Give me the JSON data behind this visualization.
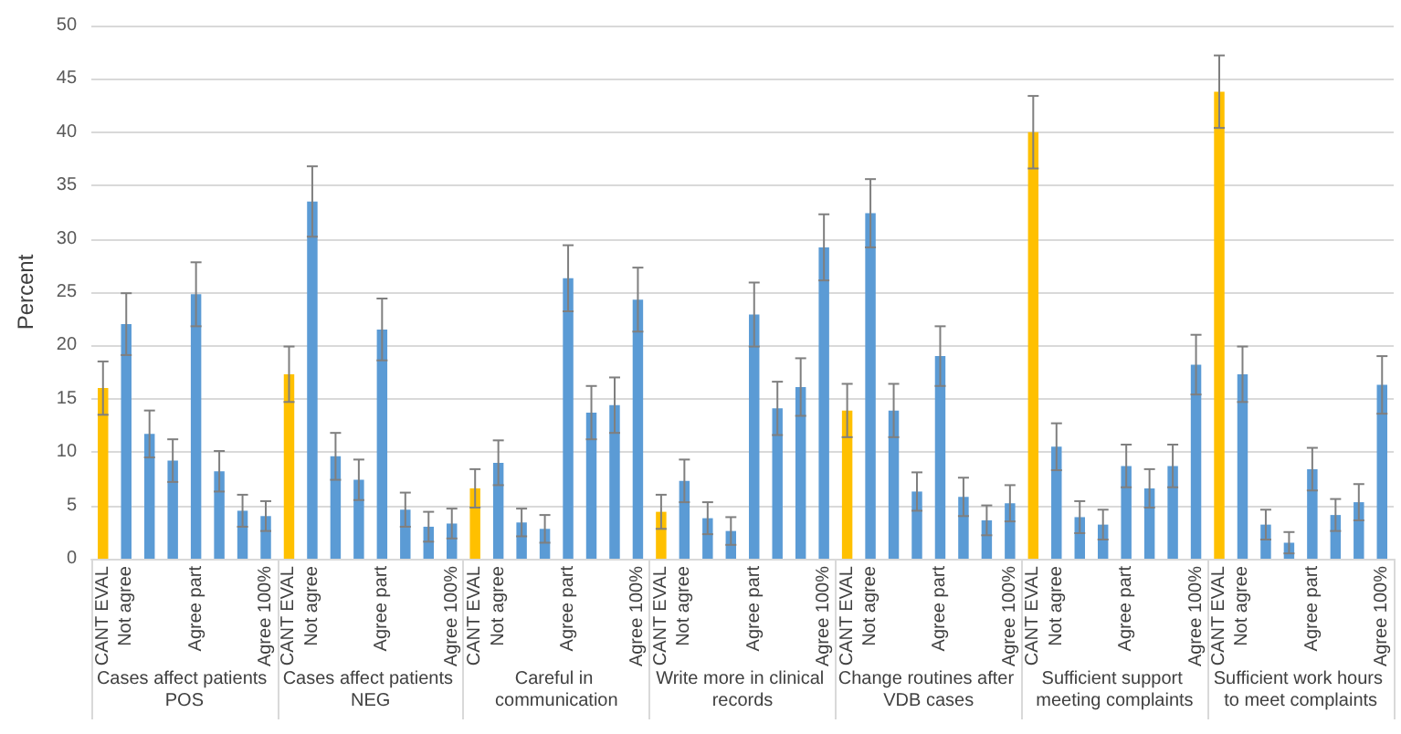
{
  "chart_data": {
    "type": "bar",
    "ylabel": "Percent",
    "categories": [
      "CANT EVAL",
      "Not agree",
      null,
      null,
      "Agree part",
      null,
      null,
      "Agree 100%",
      "CANT EVAL",
      "Not agree",
      null,
      null,
      "Agree part",
      null,
      null,
      "Agree 100%",
      "CANT EVAL",
      "Not agree",
      null,
      null,
      "Agree part",
      null,
      null,
      "Agree 100%",
      "CANT EVAL",
      "Not agree",
      null,
      null,
      "Agree part",
      null,
      null,
      "Agree 100%",
      "CANT EVAL",
      "Not agree",
      null,
      null,
      "Agree part",
      null,
      null,
      "Agree 100%",
      "CANT EVAL",
      "Not agree",
      null,
      null,
      "Agree part",
      null,
      null,
      "Agree 100%",
      "CANT EVAL",
      "Not agree",
      null,
      null,
      "Agree part",
      null,
      null,
      "Agree 100%"
    ],
    "values": [
      16,
      22,
      11.7,
      9.2,
      24.8,
      8.2,
      4.5,
      4.0,
      17.3,
      33.5,
      9.6,
      7.4,
      21.5,
      4.6,
      3.0,
      3.3,
      6.6,
      9.0,
      3.4,
      2.8,
      26.3,
      13.7,
      14.4,
      24.3,
      4.4,
      7.3,
      3.8,
      2.6,
      22.9,
      14.1,
      16.1,
      29.2,
      13.9,
      32.4,
      13.9,
      6.3,
      19.0,
      5.8,
      3.6,
      5.2,
      40.0,
      10.5,
      3.9,
      3.2,
      8.7,
      6.6,
      8.7,
      18.2,
      43.8,
      17.3,
      3.2,
      1.5,
      8.4,
      4.1,
      5.3,
      16.3
    ],
    "errors": [
      2.5,
      2.9,
      2.2,
      2.0,
      3.0,
      1.9,
      1.5,
      1.4,
      2.6,
      3.3,
      2.2,
      1.9,
      2.9,
      1.6,
      1.4,
      1.4,
      1.8,
      2.1,
      1.3,
      1.3,
      3.1,
      2.5,
      2.6,
      3.0,
      1.6,
      2.0,
      1.5,
      1.3,
      3.0,
      2.5,
      2.7,
      3.1,
      2.5,
      3.2,
      2.5,
      1.8,
      2.8,
      1.8,
      1.4,
      1.7,
      3.4,
      2.2,
      1.5,
      1.4,
      2.0,
      1.8,
      2.0,
      2.8,
      3.4,
      2.6,
      1.4,
      1.0,
      2.0,
      1.5,
      1.7,
      2.7
    ],
    "colors": [
      "#ffc000",
      "#5b9bd5",
      "#5b9bd5",
      "#5b9bd5",
      "#5b9bd5",
      "#5b9bd5",
      "#5b9bd5",
      "#5b9bd5",
      "#ffc000",
      "#5b9bd5",
      "#5b9bd5",
      "#5b9bd5",
      "#5b9bd5",
      "#5b9bd5",
      "#5b9bd5",
      "#5b9bd5",
      "#ffc000",
      "#5b9bd5",
      "#5b9bd5",
      "#5b9bd5",
      "#5b9bd5",
      "#5b9bd5",
      "#5b9bd5",
      "#5b9bd5",
      "#ffc000",
      "#5b9bd5",
      "#5b9bd5",
      "#5b9bd5",
      "#5b9bd5",
      "#5b9bd5",
      "#5b9bd5",
      "#5b9bd5",
      "#ffc000",
      "#5b9bd5",
      "#5b9bd5",
      "#5b9bd5",
      "#5b9bd5",
      "#5b9bd5",
      "#5b9bd5",
      "#5b9bd5",
      "#ffc000",
      "#5b9bd5",
      "#5b9bd5",
      "#5b9bd5",
      "#5b9bd5",
      "#5b9bd5",
      "#5b9bd5",
      "#5b9bd5",
      "#ffc000",
      "#5b9bd5",
      "#5b9bd5",
      "#5b9bd5",
      "#5b9bd5",
      "#5b9bd5",
      "#5b9bd5",
      "#5b9bd5"
    ],
    "annotations": [
      "Cases affect patients POS",
      "Cases affect patients NEG",
      "Careful in communication",
      "Write more in clinical records",
      "Change routines after VDB cases",
      "Sufficient support meeting complaints",
      "Sufficient work hours to meet complaints"
    ],
    "ylim": [
      0,
      50
    ],
    "yticks": [
      0,
      5,
      10,
      15,
      20,
      25,
      30,
      35,
      40,
      45,
      50
    ],
    "grid": "y"
  }
}
